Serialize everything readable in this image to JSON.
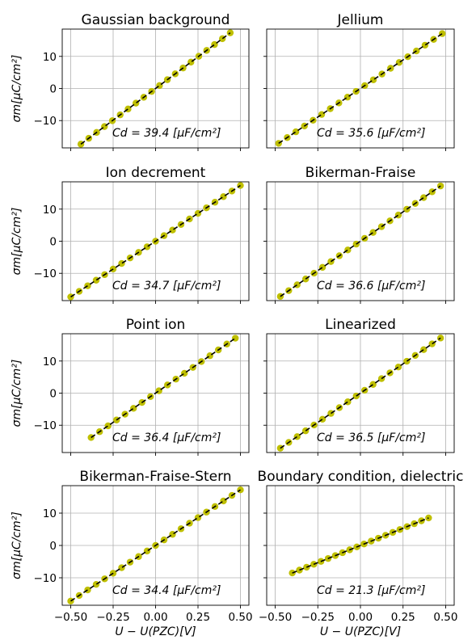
{
  "ylabel": "σm[μC/cm²]",
  "xlabel": "U − U(PZC)[V]",
  "y_ticks": [
    -10,
    0,
    10
  ],
  "x_ticks": [
    -0.5,
    -0.25,
    0.0,
    0.25,
    0.5
  ],
  "x_tick_labels": [
    "−0.50",
    "−0.25",
    "0.00",
    "0.25",
    "0.50"
  ],
  "y_tick_labels": [
    "−10",
    "0",
    "10"
  ],
  "ylim": [
    -18.5,
    18.5
  ],
  "xlim": [
    -0.55,
    0.55
  ],
  "colors": {
    "points": "#bfbf00",
    "fit": "#000000",
    "grid": "#b0b0b0"
  },
  "chart_data": [
    {
      "type": "scatter",
      "title": "Gaussian background",
      "annotation": "Cd = 39.4 [μF/cm²]",
      "x_start": -0.44,
      "x_end": 0.44,
      "n": 20,
      "slope": 39.4
    },
    {
      "type": "scatter",
      "title": "Jellium",
      "annotation": "Cd = 35.6 [μF/cm²]",
      "x_start": -0.48,
      "x_end": 0.48,
      "n": 20,
      "slope": 35.6
    },
    {
      "type": "scatter",
      "title": "Ion decrement",
      "annotation": "Cd = 34.7 [μF/cm²]",
      "x_start": -0.5,
      "x_end": 0.5,
      "n": 21,
      "slope": 34.7
    },
    {
      "type": "scatter",
      "title": "Bikerman-Fraise",
      "annotation": "Cd = 36.6 [μF/cm²]",
      "x_start": -0.47,
      "x_end": 0.47,
      "n": 20,
      "slope": 36.6
    },
    {
      "type": "scatter",
      "title": "Point ion",
      "annotation": "Cd = 36.4 [μF/cm²]",
      "x_start": -0.38,
      "x_end": 0.47,
      "n": 18,
      "slope": 36.4
    },
    {
      "type": "scatter",
      "title": "Linearized",
      "annotation": "Cd = 36.5 [μF/cm²]",
      "x_start": -0.47,
      "x_end": 0.47,
      "n": 20,
      "slope": 36.5
    },
    {
      "type": "scatter",
      "title": "Bikerman-Fraise-Stern",
      "annotation": "Cd = 34.4 [μF/cm²]",
      "x_start": -0.5,
      "x_end": 0.5,
      "n": 21,
      "slope": 34.4
    },
    {
      "type": "scatter",
      "title": "Boundary condition, dielectric",
      "annotation": "Cd = 21.3 [μF/cm²]",
      "x_start": -0.4,
      "x_end": 0.4,
      "n": 20,
      "slope": 21.3
    }
  ]
}
